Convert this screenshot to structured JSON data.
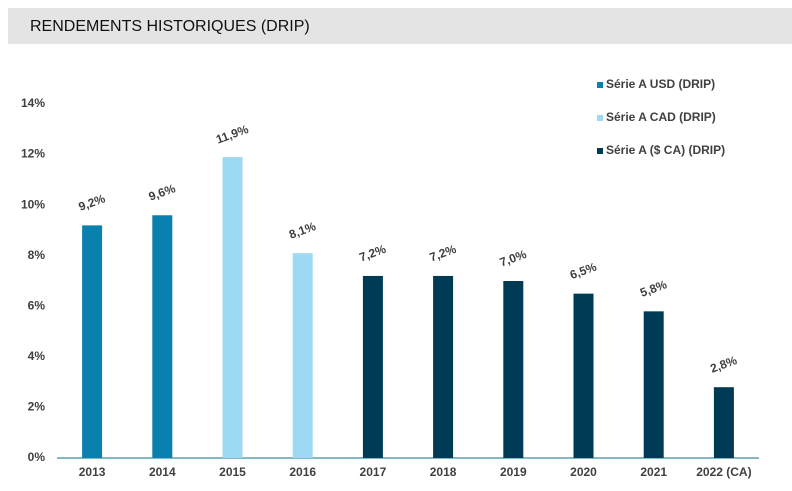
{
  "chart_data": {
    "type": "bar",
    "title": "RENDEMENTS HISTORIQUES (DRIP)",
    "categories": [
      "2013",
      "2014",
      "2015",
      "2016",
      "2017",
      "2018",
      "2019",
      "2020",
      "2021",
      "2022 (CA)"
    ],
    "series": [
      {
        "name": "Série A USD (DRIP)",
        "color": "#0a80af",
        "values": [
          9.2,
          9.6,
          null,
          null,
          null,
          null,
          null,
          null,
          null,
          null
        ],
        "value_labels": [
          "9,2%",
          "9,6%",
          null,
          null,
          null,
          null,
          null,
          null,
          null,
          null
        ]
      },
      {
        "name": "Série A CAD (DRIP)",
        "color": "#9bdaf2",
        "values": [
          null,
          null,
          11.9,
          8.1,
          null,
          null,
          null,
          null,
          null,
          null
        ],
        "value_labels": [
          null,
          null,
          "11,9%",
          "8,1%",
          null,
          null,
          null,
          null,
          null,
          null
        ]
      },
      {
        "name": "Série A ($ CA) (DRIP)",
        "color": "#003b56",
        "values": [
          null,
          null,
          null,
          null,
          7.2,
          7.2,
          7.0,
          6.5,
          5.8,
          2.8
        ],
        "value_labels": [
          null,
          null,
          null,
          null,
          "7,2%",
          "7,2%",
          "7,0%",
          "6,5%",
          "5,8%",
          "2,8%"
        ]
      }
    ],
    "ylim": [
      0,
      14
    ],
    "yticks": [
      {
        "value": 0,
        "label": "0%"
      },
      {
        "value": 2,
        "label": "2%"
      },
      {
        "value": 4,
        "label": "4%"
      },
      {
        "value": 6,
        "label": "6%"
      },
      {
        "value": 8,
        "label": "8%"
      },
      {
        "value": 10,
        "label": "10%"
      },
      {
        "value": 12,
        "label": "12%"
      },
      {
        "value": 14,
        "label": "14%"
      }
    ],
    "grid": false
  }
}
